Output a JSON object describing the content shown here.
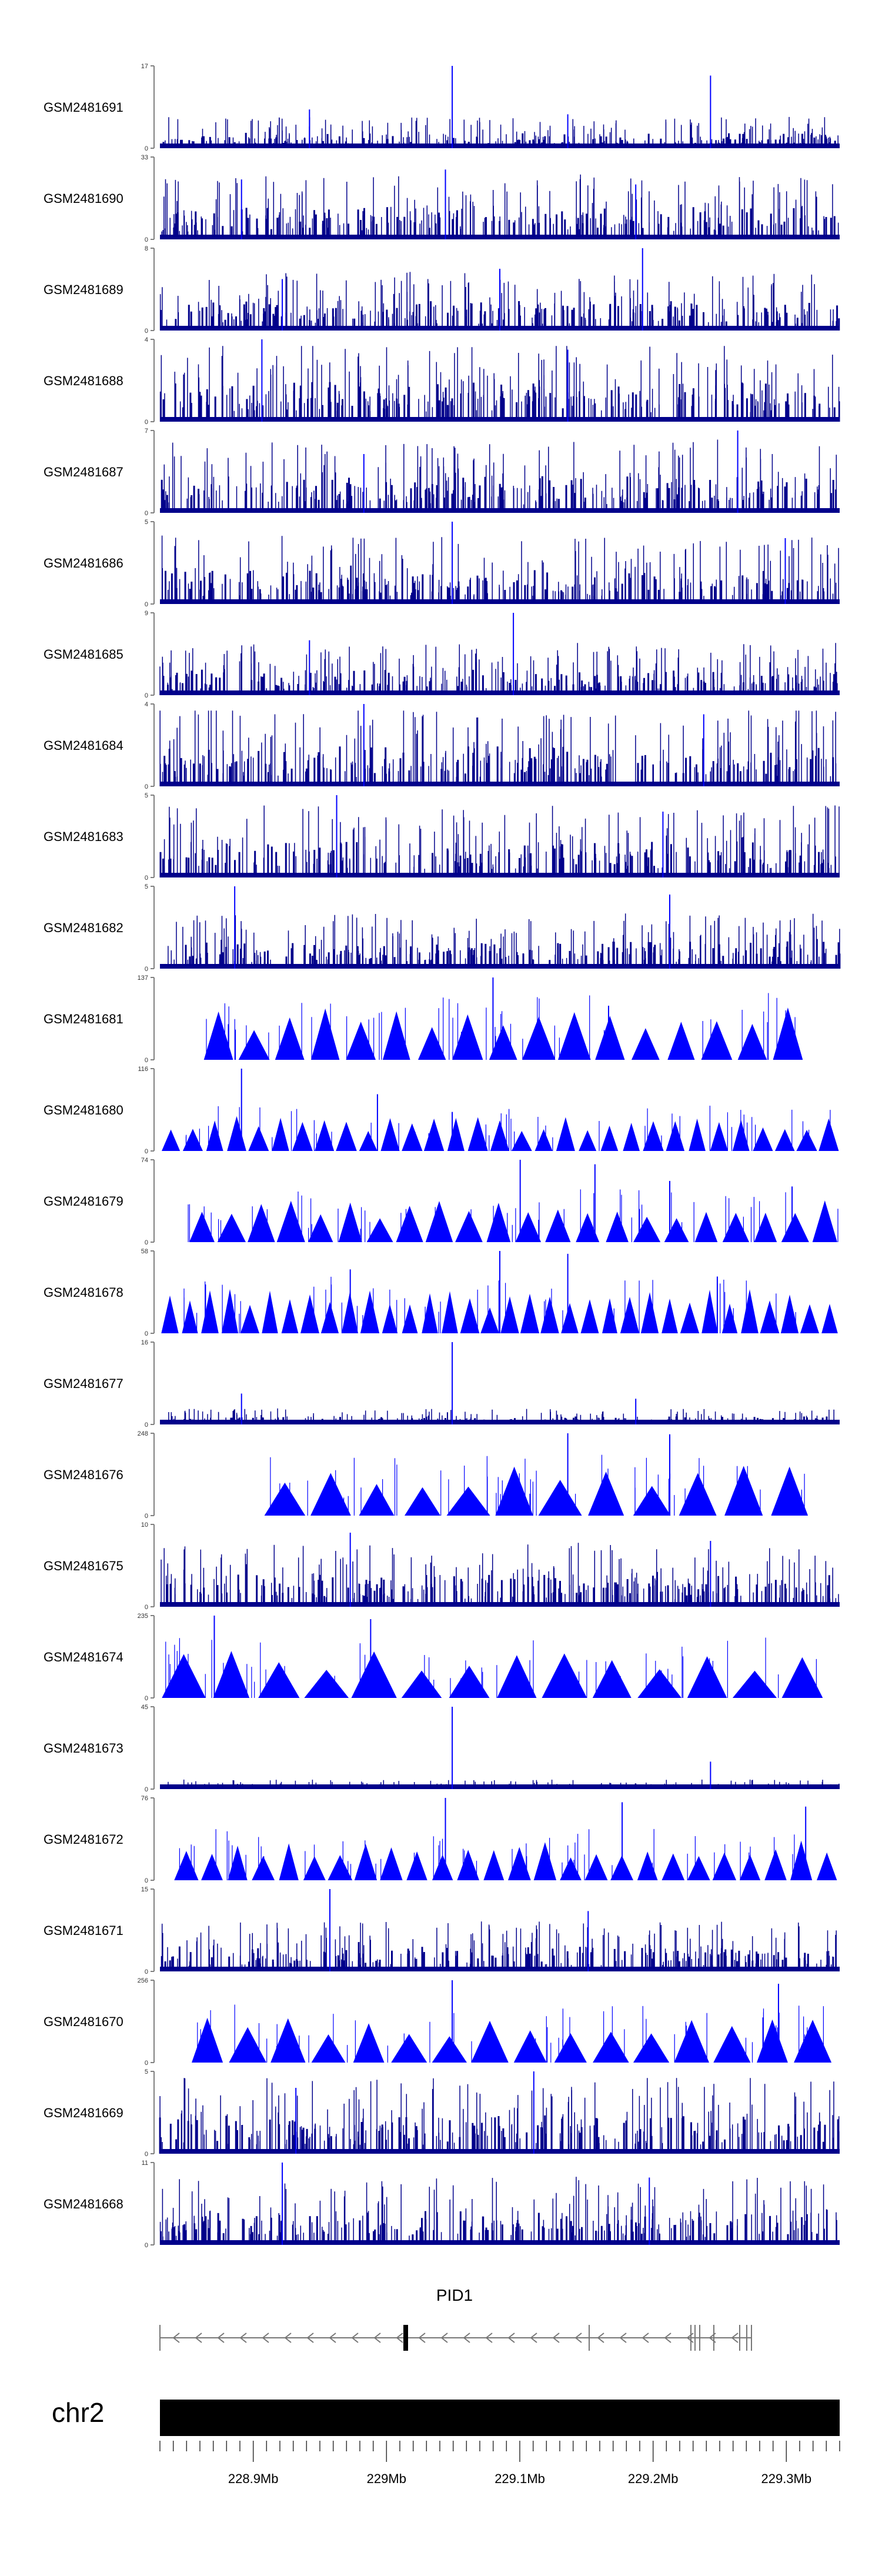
{
  "chart_data": {
    "type": "genome-browser-coverage-tracks",
    "chromosome": "chr2",
    "gene": {
      "name": "PID1",
      "strand": "-"
    },
    "axis": {
      "range_mb": [
        228.83,
        229.34
      ],
      "ticks": [
        "228.9Mb",
        "229Mb",
        "229.1Mb",
        "229.2Mb",
        "229.3Mb"
      ],
      "tick_values_mb": [
        228.9,
        229.0,
        229.1,
        229.2,
        229.3
      ]
    },
    "tracks": [
      {
        "name": "GSM2481691",
        "ymin": "0",
        "ymax": "17",
        "ymax_value": 17,
        "style": "dense",
        "typical": 2.5,
        "spikes": [
          [
            0.43,
            17
          ],
          [
            0.81,
            15
          ],
          [
            0.22,
            8
          ],
          [
            0.6,
            7
          ]
        ]
      },
      {
        "name": "GSM2481690",
        "ymin": "0",
        "ymax": "33",
        "ymax_value": 33,
        "style": "dense",
        "typical": 10,
        "spikes": [
          [
            0.42,
            28
          ],
          [
            0.12,
            24
          ],
          [
            0.7,
            22
          ]
        ]
      },
      {
        "name": "GSM2481689",
        "ymin": "0",
        "ymax": "8",
        "ymax_value": 8,
        "style": "dense",
        "typical": 2.2,
        "spikes": [
          [
            0.71,
            8
          ],
          [
            0.5,
            6
          ],
          [
            0.18,
            5
          ]
        ]
      },
      {
        "name": "GSM2481688",
        "ymin": "0",
        "ymax": "4",
        "ymax_value": 4,
        "style": "dense",
        "typical": 1.5,
        "spikes": [
          [
            0.15,
            4
          ],
          [
            0.6,
            3.5
          ]
        ]
      },
      {
        "name": "GSM2481687",
        "ymin": "0",
        "ymax": "7",
        "ymax_value": 7,
        "style": "dense",
        "typical": 2.4,
        "spikes": [
          [
            0.85,
            7
          ],
          [
            0.3,
            5
          ]
        ]
      },
      {
        "name": "GSM2481686",
        "ymin": "0",
        "ymax": "5",
        "ymax_value": 5,
        "style": "dense",
        "typical": 1.6,
        "spikes": [
          [
            0.43,
            5
          ],
          [
            0.92,
            4
          ]
        ]
      },
      {
        "name": "GSM2481685",
        "ymin": "0",
        "ymax": "9",
        "ymax_value": 9,
        "style": "dense",
        "typical": 2.2,
        "spikes": [
          [
            0.52,
            9
          ],
          [
            0.22,
            6
          ]
        ]
      },
      {
        "name": "GSM2481684",
        "ymin": "0",
        "ymax": "4",
        "ymax_value": 4,
        "style": "dense",
        "typical": 1.5,
        "spikes": [
          [
            0.3,
            4
          ],
          [
            0.8,
            3.5
          ]
        ]
      },
      {
        "name": "GSM2481683",
        "ymin": "0",
        "ymax": "5",
        "ymax_value": 5,
        "style": "dense",
        "typical": 1.7,
        "spikes": [
          [
            0.26,
            5
          ],
          [
            0.74,
            4
          ]
        ]
      },
      {
        "name": "GSM2481682",
        "ymin": "0",
        "ymax": "5",
        "ymax_value": 5,
        "style": "dense",
        "typical": 1.3,
        "spikes": [
          [
            0.11,
            5
          ],
          [
            0.75,
            4.5
          ]
        ]
      },
      {
        "name": "GSM2481681",
        "ymin": "0",
        "ymax": "137",
        "ymax_value": 137,
        "style": "triangles",
        "range": [
          0.06,
          0.95
        ],
        "n": 17,
        "h": 70,
        "spikes": [
          [
            0.49,
            137
          ],
          [
            0.66,
            90
          ]
        ]
      },
      {
        "name": "GSM2481680",
        "ymin": "0",
        "ymax": "116",
        "ymax_value": 116,
        "style": "triangles",
        "range": [
          0.0,
          1.0
        ],
        "n": 31,
        "h": 40,
        "spikes": [
          [
            0.12,
            116
          ],
          [
            0.32,
            80
          ],
          [
            0.43,
            55
          ]
        ]
      },
      {
        "name": "GSM2481679",
        "ymin": "0",
        "ymax": "74",
        "ymax_value": 74,
        "style": "triangles",
        "range": [
          0.04,
          1.0
        ],
        "n": 22,
        "h": 30,
        "spikes": [
          [
            0.53,
            74
          ],
          [
            0.64,
            70
          ],
          [
            0.75,
            55
          ],
          [
            0.93,
            50
          ]
        ]
      },
      {
        "name": "GSM2481678",
        "ymin": "0",
        "ymax": "58",
        "ymax_value": 58,
        "style": "triangles",
        "range": [
          0.0,
          1.0
        ],
        "n": 34,
        "h": 25,
        "spikes": [
          [
            0.5,
            58
          ],
          [
            0.6,
            56
          ],
          [
            0.28,
            45
          ],
          [
            0.82,
            40
          ]
        ]
      },
      {
        "name": "GSM2481677",
        "ymin": "0",
        "ymax": "16",
        "ymax_value": 16,
        "style": "dense",
        "typical": 1.2,
        "spikes": [
          [
            0.43,
            16
          ],
          [
            0.12,
            6
          ],
          [
            0.7,
            5
          ]
        ]
      },
      {
        "name": "GSM2481676",
        "ymin": "0",
        "ymax": "248",
        "ymax_value": 248,
        "style": "triangles",
        "range": [
          0.15,
          0.96
        ],
        "n": 12,
        "h": 120,
        "spikes": [
          [
            0.6,
            248
          ],
          [
            0.75,
            245
          ]
        ]
      },
      {
        "name": "GSM2481675",
        "ymin": "0",
        "ymax": "10",
        "ymax_value": 10,
        "style": "dense",
        "typical": 3,
        "spikes": [
          [
            0.28,
            9
          ],
          [
            0.81,
            8
          ]
        ]
      },
      {
        "name": "GSM2481674",
        "ymin": "0",
        "ymax": "235",
        "ymax_value": 235,
        "style": "triangles",
        "range": [
          0.0,
          0.98
        ],
        "n": 14,
        "h": 110,
        "spikes": [
          [
            0.08,
            235
          ],
          [
            0.31,
            225
          ]
        ]
      },
      {
        "name": "GSM2481673",
        "ymin": "0",
        "ymax": "45",
        "ymax_value": 45,
        "style": "dense",
        "typical": 2,
        "spikes": [
          [
            0.43,
            45
          ],
          [
            0.81,
            15
          ]
        ]
      },
      {
        "name": "GSM2481672",
        "ymin": "0",
        "ymax": "76",
        "ymax_value": 76,
        "style": "triangles",
        "range": [
          0.02,
          1.0
        ],
        "n": 26,
        "h": 30,
        "spikes": [
          [
            0.42,
            76
          ],
          [
            0.68,
            72
          ],
          [
            0.95,
            68
          ]
        ]
      },
      {
        "name": "GSM2481671",
        "ymin": "0",
        "ymax": "15",
        "ymax_value": 15,
        "style": "dense",
        "typical": 3.5,
        "spikes": [
          [
            0.25,
            15
          ],
          [
            0.63,
            11
          ]
        ]
      },
      {
        "name": "GSM2481670",
        "ymin": "0",
        "ymax": "256",
        "ymax_value": 256,
        "style": "triangles",
        "range": [
          0.04,
          0.99
        ],
        "n": 16,
        "h": 115,
        "spikes": [
          [
            0.43,
            256
          ],
          [
            0.91,
            245
          ]
        ]
      },
      {
        "name": "GSM2481669",
        "ymin": "0",
        "ymax": "5",
        "ymax_value": 5,
        "style": "dense",
        "typical": 1.8,
        "spikes": [
          [
            0.55,
            5
          ],
          [
            0.2,
            4
          ]
        ]
      },
      {
        "name": "GSM2481668",
        "ymin": "0",
        "ymax": "11",
        "ymax_value": 11,
        "style": "dense",
        "typical": 3.5,
        "spikes": [
          [
            0.18,
            11
          ],
          [
            0.72,
            9
          ]
        ]
      }
    ],
    "colors": {
      "signal": "#0000ff",
      "signal_dense": "#00008b",
      "axis": "#808080",
      "text": "#000000"
    }
  }
}
